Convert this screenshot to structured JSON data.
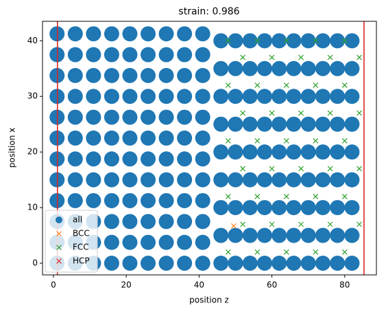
{
  "chart_data": {
    "type": "scatter",
    "title": "strain: 0.986",
    "xlabel": "position z",
    "ylabel": "position x",
    "xlim": [
      -3,
      88.7
    ],
    "ylim": [
      -2.1,
      43.5
    ],
    "xticks": [
      0,
      20,
      40,
      60,
      80
    ],
    "yticks": [
      0,
      10,
      20,
      30,
      40
    ],
    "grid": false,
    "legend": "lower left",
    "vlines": [
      1.1,
      85.3
    ],
    "vline_color": "#d62728",
    "series": [
      {
        "name": "all",
        "marker": "o",
        "color": "#1f77b4",
        "x": [
          1,
          6,
          11,
          16,
          21,
          26,
          31,
          36,
          41,
          1,
          6,
          11,
          16,
          21,
          26,
          31,
          36,
          41,
          1,
          6,
          11,
          16,
          21,
          26,
          31,
          36,
          41,
          1,
          6,
          11,
          16,
          21,
          26,
          31,
          36,
          41,
          1,
          6,
          11,
          16,
          21,
          26,
          31,
          36,
          41,
          1,
          6,
          11,
          16,
          21,
          26,
          31,
          36,
          41,
          1,
          6,
          11,
          16,
          21,
          26,
          31,
          36,
          41,
          1,
          6,
          11,
          16,
          21,
          26,
          31,
          36,
          41,
          1,
          6,
          11,
          16,
          21,
          26,
          31,
          36,
          41,
          1,
          6,
          11,
          16,
          21,
          26,
          31,
          36,
          41,
          1,
          6,
          11,
          16,
          21,
          26,
          31,
          36,
          41,
          1,
          6,
          11,
          16,
          21,
          26,
          31,
          36,
          41,
          46,
          50,
          54,
          58,
          62,
          66,
          70,
          74,
          78,
          82,
          46,
          50,
          54,
          58,
          62,
          66,
          70,
          74,
          78,
          82,
          46,
          50,
          54,
          58,
          62,
          66,
          70,
          74,
          78,
          82,
          46,
          50,
          54,
          58,
          62,
          66,
          70,
          74,
          78,
          82,
          46,
          50,
          54,
          58,
          62,
          66,
          70,
          74,
          78,
          82,
          46,
          50,
          54,
          58,
          62,
          66,
          70,
          74,
          78,
          82,
          46,
          50,
          54,
          58,
          62,
          66,
          70,
          74,
          78,
          82,
          46,
          50,
          54,
          58,
          62,
          66,
          70,
          74,
          78,
          82,
          46,
          50,
          54,
          58,
          62,
          66,
          70,
          74,
          78,
          82
        ],
        "y": [
          0,
          0,
          0,
          0,
          0,
          0,
          0,
          0,
          0,
          3.75,
          3.75,
          3.75,
          3.75,
          3.75,
          3.75,
          3.75,
          3.75,
          3.75,
          7.5,
          7.5,
          7.5,
          7.5,
          7.5,
          7.5,
          7.5,
          7.5,
          7.5,
          11.25,
          11.25,
          11.25,
          11.25,
          11.25,
          11.25,
          11.25,
          11.25,
          11.25,
          15,
          15,
          15,
          15,
          15,
          15,
          15,
          15,
          15,
          18.75,
          18.75,
          18.75,
          18.75,
          18.75,
          18.75,
          18.75,
          18.75,
          18.75,
          22.5,
          22.5,
          22.5,
          22.5,
          22.5,
          22.5,
          22.5,
          22.5,
          22.5,
          26.25,
          26.25,
          26.25,
          26.25,
          26.25,
          26.25,
          26.25,
          26.25,
          26.25,
          30,
          30,
          30,
          30,
          30,
          30,
          30,
          30,
          30,
          33.75,
          33.75,
          33.75,
          33.75,
          33.75,
          33.75,
          33.75,
          33.75,
          33.75,
          37.5,
          37.5,
          37.5,
          37.5,
          37.5,
          37.5,
          37.5,
          37.5,
          37.5,
          41.25,
          41.25,
          41.25,
          41.25,
          41.25,
          41.25,
          41.25,
          41.25,
          41.25,
          0,
          0,
          0,
          0,
          0,
          0,
          0,
          0,
          0,
          0,
          5,
          5,
          5,
          5,
          5,
          5,
          5,
          5,
          5,
          5,
          10,
          10,
          10,
          10,
          10,
          10,
          10,
          10,
          10,
          10,
          15,
          15,
          15,
          15,
          15,
          15,
          15,
          15,
          15,
          15,
          20,
          20,
          20,
          20,
          20,
          20,
          20,
          20,
          20,
          20,
          25,
          25,
          25,
          25,
          25,
          25,
          25,
          25,
          25,
          25,
          30,
          30,
          30,
          30,
          30,
          30,
          30,
          30,
          30,
          30,
          35,
          35,
          35,
          35,
          35,
          35,
          35,
          35,
          35,
          35,
          40,
          40,
          40,
          40,
          40,
          40,
          40,
          40,
          40,
          40
        ]
      },
      {
        "name": "BCC",
        "marker": "x",
        "color": "#ff7f0e",
        "x": [
          49.5
        ],
        "y": [
          6.7
        ]
      },
      {
        "name": "FCC",
        "marker": "x",
        "color": "#2ca02c",
        "x": [
          48,
          56,
          64,
          72,
          80,
          48,
          56,
          64,
          72,
          80,
          48,
          56,
          64,
          72,
          80,
          48,
          56,
          64,
          72,
          80,
          48,
          56,
          64,
          72,
          80,
          52,
          60,
          68,
          76,
          84,
          52,
          60,
          68,
          76,
          84,
          52,
          60,
          68,
          76,
          84,
          52,
          60,
          68,
          76,
          84
        ],
        "y": [
          2,
          2,
          2,
          2,
          2,
          12,
          12,
          12,
          12,
          12,
          22,
          22,
          22,
          22,
          22,
          32,
          32,
          32,
          32,
          32,
          40,
          40,
          40,
          40,
          40,
          7,
          7,
          7,
          7,
          7,
          17,
          17,
          17,
          17,
          17,
          27,
          27,
          27,
          27,
          27,
          37,
          37,
          37,
          37,
          37
        ]
      },
      {
        "name": "HCP",
        "marker": "x",
        "color": "#d62728",
        "x": [],
        "y": []
      }
    ]
  }
}
